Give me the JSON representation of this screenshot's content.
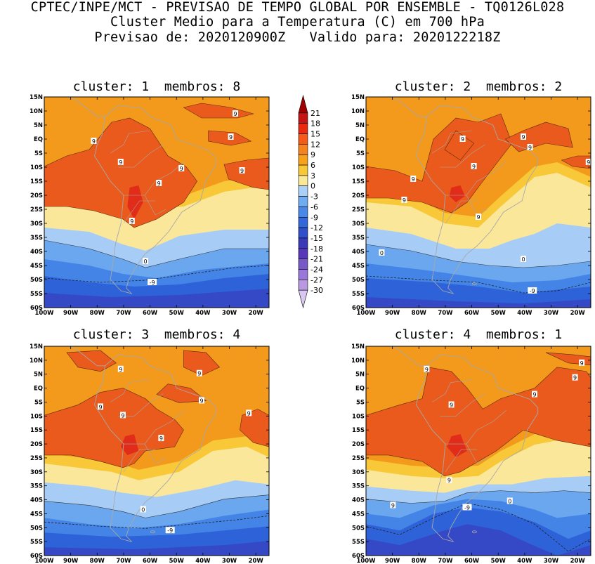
{
  "header": {
    "line1": "CPTEC/INPE/MCT - PREVISAO DE TEMPO GLOBAL POR ENSEMBLE - TQ0126L028",
    "line2": "Cluster Medio para a Temperatura (C) em 700 hPa",
    "line3": "Previsao de: 2020120900Z   Valido para: 2020122218Z"
  },
  "panels": [
    {
      "title": "cluster: 1  membros: 8",
      "contour_labels": [
        "9",
        "9",
        "9",
        "9",
        "9",
        "9",
        "9",
        "9",
        "0",
        "-9"
      ]
    },
    {
      "title": "cluster: 2  membros: 2",
      "contour_labels": [
        "9",
        "9",
        "9",
        "9",
        "9",
        "9",
        "9",
        "9",
        "0",
        "0",
        "-9"
      ]
    },
    {
      "title": "cluster: 3  membros: 4",
      "contour_labels": [
        "9",
        "9",
        "9",
        "9",
        "9",
        "9",
        "9",
        "0",
        "-9"
      ]
    },
    {
      "title": "cluster: 4  membros: 1",
      "contour_labels": [
        "9",
        "9",
        "9",
        "9",
        "9",
        "9",
        "9",
        "0",
        "0",
        "-9"
      ]
    }
  ],
  "lat_labels": [
    "15N",
    "10N",
    "5N",
    "EQ",
    "5S",
    "10S",
    "15S",
    "20S",
    "25S",
    "30S",
    "35S",
    "40S",
    "45S",
    "50S",
    "55S",
    "60S"
  ],
  "lon_labels": [
    "100W",
    "90W",
    "80W",
    "70W",
    "60W",
    "50W",
    "40W",
    "30W",
    "20W"
  ],
  "colorbar": {
    "labels": [
      "21",
      "18",
      "15",
      "12",
      "9",
      "6",
      "3",
      "0",
      "-3",
      "-6",
      "-9",
      "-12",
      "-15",
      "-18",
      "-21",
      "-24",
      "-27",
      "-30"
    ],
    "colors": [
      "#a00000",
      "#c41414",
      "#e82a10",
      "#f55a18",
      "#f58420",
      "#f8a21c",
      "#f8c838",
      "#f8e898",
      "#a8d0f8",
      "#70acf0",
      "#4888e8",
      "#3468d8",
      "#2f50c8",
      "#3a3ab8",
      "#5838b8",
      "#7858c8",
      "#9878d8",
      "#b898e0",
      "#d8c8f0"
    ]
  },
  "bands": {
    "warm_dark": "#ea5a1c",
    "warm": "#f39a1c",
    "mild": "#f8c838",
    "pale": "#fae79a",
    "cool1": "#a7cdf6",
    "cool2": "#6aa7ef",
    "cool3": "#4384e6",
    "cold1": "#2e62d8",
    "cold2": "#3548c6",
    "hot": "#e02c18"
  }
}
